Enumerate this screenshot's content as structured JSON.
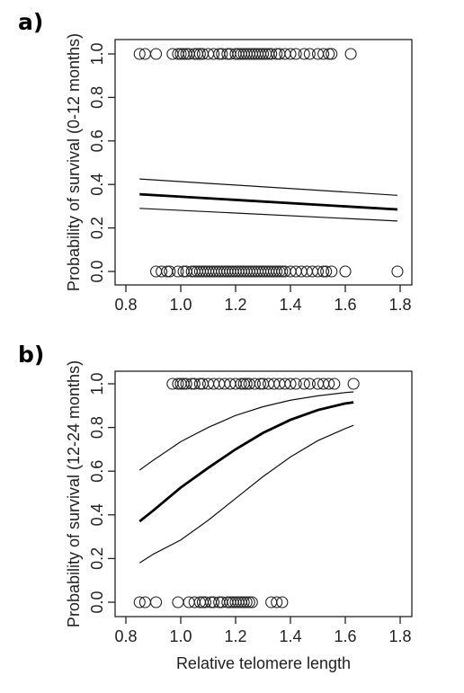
{
  "chart_data": [
    {
      "type": "scatter",
      "panel_label": "a)",
      "title": "",
      "xlabel": "",
      "ylabel": "Probability of survival (0-12 months)",
      "xlim": [
        0.8,
        1.8
      ],
      "ylim": [
        0.0,
        1.0
      ],
      "x_ticks": [
        "0.8",
        "1.0",
        "1.2",
        "1.4",
        "1.6",
        "1.8"
      ],
      "y_ticks": [
        "0.0",
        "0.2",
        "0.4",
        "0.6",
        "0.8",
        "1.0"
      ],
      "points_survived_x": [
        0.85,
        0.87,
        0.91,
        0.97,
        0.99,
        1.0,
        1.01,
        1.02,
        1.03,
        1.05,
        1.06,
        1.07,
        1.08,
        1.1,
        1.12,
        1.14,
        1.15,
        1.17,
        1.18,
        1.2,
        1.21,
        1.22,
        1.23,
        1.24,
        1.25,
        1.26,
        1.27,
        1.28,
        1.29,
        1.3,
        1.31,
        1.32,
        1.33,
        1.35,
        1.36,
        1.38,
        1.4,
        1.42,
        1.45,
        1.47,
        1.5,
        1.52,
        1.54,
        1.55,
        1.62
      ],
      "points_died_x": [
        0.91,
        0.93,
        0.95,
        0.96,
        0.99,
        1.01,
        1.02,
        1.04,
        1.05,
        1.06,
        1.07,
        1.08,
        1.09,
        1.1,
        1.11,
        1.12,
        1.13,
        1.14,
        1.15,
        1.16,
        1.17,
        1.18,
        1.19,
        1.2,
        1.21,
        1.22,
        1.23,
        1.24,
        1.25,
        1.26,
        1.27,
        1.28,
        1.29,
        1.3,
        1.31,
        1.32,
        1.33,
        1.34,
        1.35,
        1.36,
        1.37,
        1.38,
        1.4,
        1.42,
        1.44,
        1.46,
        1.48,
        1.5,
        1.52,
        1.53,
        1.55,
        1.6,
        1.79
      ],
      "fit": {
        "x": [
          0.85,
          1.79
        ],
        "y": [
          0.355,
          0.285
        ]
      },
      "ci_upper": {
        "x": [
          0.85,
          1.79
        ],
        "y": [
          0.425,
          0.35
        ]
      },
      "ci_lower": {
        "x": [
          0.85,
          1.79
        ],
        "y": [
          0.29,
          0.232
        ]
      }
    },
    {
      "type": "scatter",
      "panel_label": "b)",
      "title": "",
      "xlabel": "Relative telomere length",
      "ylabel": "Probability of survival (12-24 months)",
      "xlim": [
        0.8,
        1.8
      ],
      "ylim": [
        0.0,
        1.0
      ],
      "x_ticks": [
        "0.8",
        "1.0",
        "1.2",
        "1.4",
        "1.6",
        "1.8"
      ],
      "y_ticks": [
        "0.0",
        "0.2",
        "0.4",
        "0.6",
        "0.8",
        "1.0"
      ],
      "points_survived_x": [
        0.97,
        0.99,
        1.0,
        1.01,
        1.02,
        1.04,
        1.05,
        1.07,
        1.08,
        1.1,
        1.12,
        1.14,
        1.16,
        1.18,
        1.2,
        1.22,
        1.23,
        1.24,
        1.25,
        1.27,
        1.29,
        1.3,
        1.32,
        1.34,
        1.36,
        1.38,
        1.4,
        1.42,
        1.45,
        1.47,
        1.5,
        1.52,
        1.54,
        1.56,
        1.63
      ],
      "points_died_x": [
        0.85,
        0.87,
        0.91,
        0.99,
        1.03,
        1.05,
        1.07,
        1.08,
        1.09,
        1.11,
        1.12,
        1.14,
        1.15,
        1.17,
        1.18,
        1.19,
        1.2,
        1.21,
        1.22,
        1.23,
        1.24,
        1.25,
        1.26,
        1.33,
        1.35,
        1.37
      ],
      "fit": {
        "x": [
          0.85,
          0.9,
          1.0,
          1.1,
          1.2,
          1.3,
          1.4,
          1.5,
          1.6,
          1.63
        ],
        "y": [
          0.37,
          0.42,
          0.525,
          0.615,
          0.7,
          0.775,
          0.835,
          0.88,
          0.91,
          0.915
        ]
      },
      "ci_upper": {
        "x": [
          0.85,
          0.9,
          1.0,
          1.1,
          1.2,
          1.3,
          1.4,
          1.5,
          1.6,
          1.63
        ],
        "y": [
          0.605,
          0.65,
          0.735,
          0.8,
          0.855,
          0.895,
          0.925,
          0.945,
          0.96,
          0.963
        ]
      },
      "ci_lower": {
        "x": [
          0.85,
          0.9,
          1.0,
          1.1,
          1.2,
          1.3,
          1.4,
          1.5,
          1.6,
          1.63
        ],
        "y": [
          0.18,
          0.22,
          0.285,
          0.375,
          0.475,
          0.575,
          0.665,
          0.74,
          0.795,
          0.81
        ]
      }
    }
  ]
}
